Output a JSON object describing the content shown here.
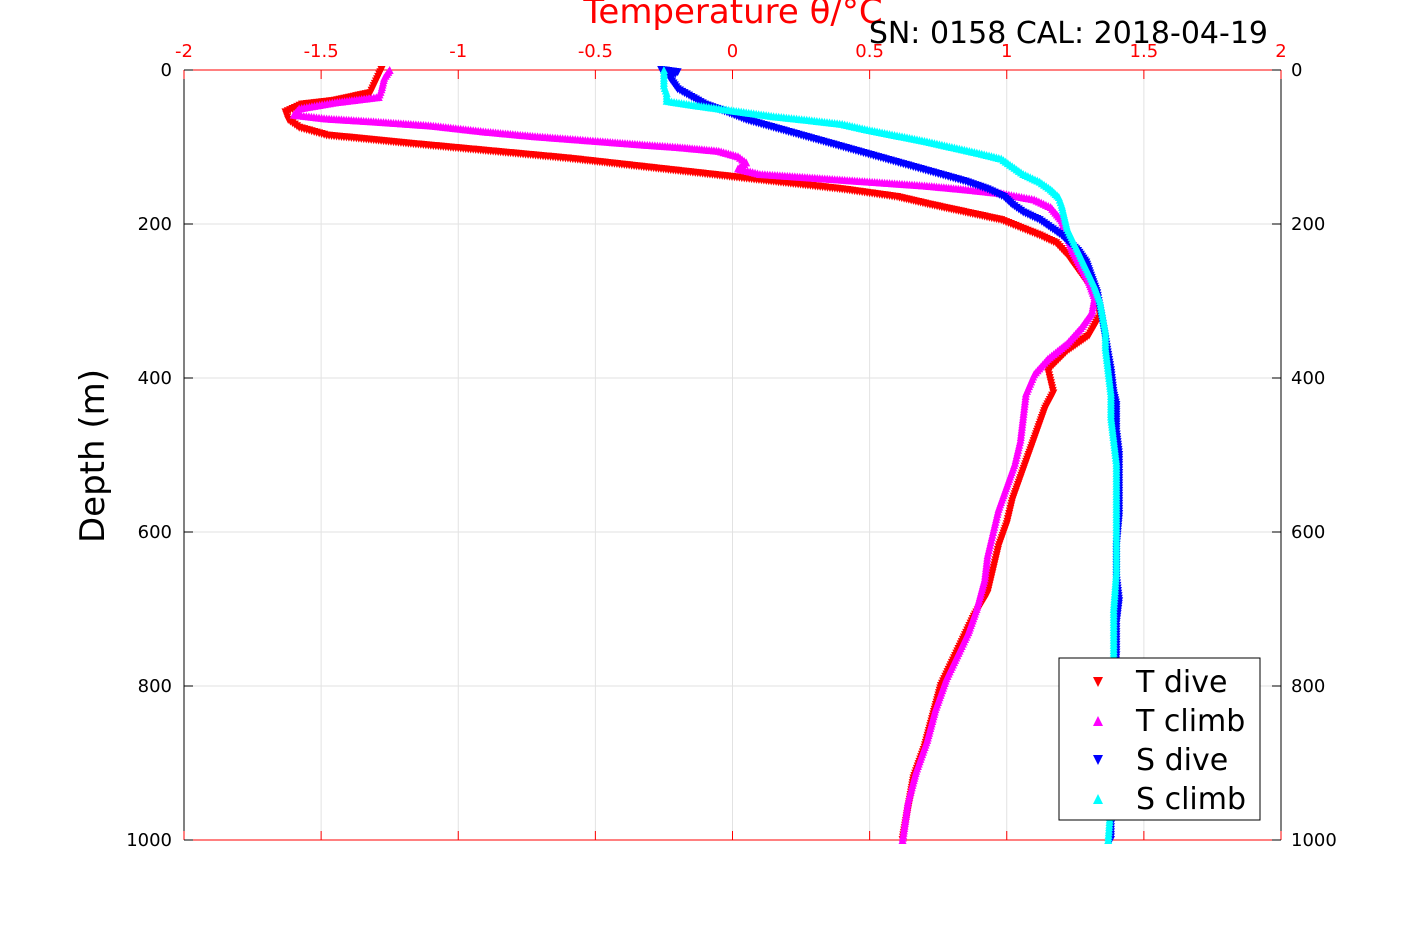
{
  "chart_data": {
    "type": "scatter",
    "xlabel": "Temperature θ/°C",
    "ylabel": "Depth (m)",
    "annotation": "SN: 0158  CAL: 2018-04-19",
    "xlim": [
      -2,
      2
    ],
    "ylim": [
      1000,
      0
    ],
    "xticks": [
      -2,
      -1.5,
      -1,
      -0.5,
      0,
      0.5,
      1,
      1.5,
      2
    ],
    "xtick_labels": [
      "-2",
      "-1.5",
      "-1",
      "-0.5",
      "0",
      "0.5",
      "1",
      "1.5",
      "2"
    ],
    "yticks": [
      0,
      200,
      400,
      600,
      800,
      1000
    ],
    "ytick_labels": [
      "0",
      "200",
      "400",
      "600",
      "800",
      "1000"
    ],
    "grid": true,
    "legend_position": "bottom-right",
    "axis_color": "#ff0000",
    "series": [
      {
        "name": "T dive",
        "color": "#ff0000",
        "marker": "triangle-down",
        "points": [
          [
            -1.28,
            0
          ],
          [
            -1.3,
            15
          ],
          [
            -1.32,
            30
          ],
          [
            -1.45,
            40
          ],
          [
            -1.57,
            45
          ],
          [
            -1.63,
            55
          ],
          [
            -1.62,
            65
          ],
          [
            -1.58,
            75
          ],
          [
            -1.48,
            85
          ],
          [
            -1.2,
            95
          ],
          [
            -0.9,
            105
          ],
          [
            -0.6,
            115
          ],
          [
            -0.35,
            125
          ],
          [
            -0.1,
            135
          ],
          [
            0.15,
            145
          ],
          [
            0.4,
            155
          ],
          [
            0.6,
            165
          ],
          [
            0.72,
            175
          ],
          [
            0.85,
            185
          ],
          [
            0.98,
            195
          ],
          [
            1.05,
            205
          ],
          [
            1.12,
            215
          ],
          [
            1.18,
            225
          ],
          [
            1.22,
            240
          ],
          [
            1.25,
            255
          ],
          [
            1.28,
            270
          ],
          [
            1.31,
            285
          ],
          [
            1.33,
            300
          ],
          [
            1.34,
            320
          ],
          [
            1.3,
            345
          ],
          [
            1.22,
            365
          ],
          [
            1.15,
            390
          ],
          [
            1.17,
            420
          ],
          [
            1.14,
            440
          ],
          [
            1.11,
            470
          ],
          [
            1.08,
            500
          ],
          [
            1.05,
            530
          ],
          [
            1.02,
            560
          ],
          [
            1.0,
            590
          ],
          [
            0.97,
            620
          ],
          [
            0.95,
            650
          ],
          [
            0.93,
            680
          ],
          [
            0.88,
            710
          ],
          [
            0.84,
            740
          ],
          [
            0.8,
            770
          ],
          [
            0.76,
            800
          ],
          [
            0.73,
            840
          ],
          [
            0.7,
            880
          ],
          [
            0.66,
            920
          ],
          [
            0.64,
            960
          ],
          [
            0.62,
            1000
          ]
        ]
      },
      {
        "name": "T climb",
        "color": "#ff00ff",
        "marker": "triangle-up",
        "points": [
          [
            -1.25,
            0
          ],
          [
            -1.27,
            10
          ],
          [
            -1.28,
            25
          ],
          [
            -1.29,
            35
          ],
          [
            -1.45,
            42
          ],
          [
            -1.58,
            50
          ],
          [
            -1.6,
            58
          ],
          [
            -1.48,
            63
          ],
          [
            -1.3,
            67
          ],
          [
            -1.1,
            72
          ],
          [
            -0.9,
            80
          ],
          [
            -0.72,
            86
          ],
          [
            -0.5,
            92
          ],
          [
            -0.32,
            97
          ],
          [
            -0.2,
            100
          ],
          [
            -0.05,
            105
          ],
          [
            0.02,
            112
          ],
          [
            0.05,
            120
          ],
          [
            0.02,
            128
          ],
          [
            0.1,
            135
          ],
          [
            0.3,
            140
          ],
          [
            0.5,
            145
          ],
          [
            0.7,
            150
          ],
          [
            0.85,
            155
          ],
          [
            0.98,
            160
          ],
          [
            1.1,
            168
          ],
          [
            1.16,
            178
          ],
          [
            1.2,
            195
          ],
          [
            1.22,
            215
          ],
          [
            1.24,
            235
          ],
          [
            1.27,
            255
          ],
          [
            1.3,
            275
          ],
          [
            1.32,
            295
          ],
          [
            1.31,
            315
          ],
          [
            1.27,
            335
          ],
          [
            1.22,
            355
          ],
          [
            1.15,
            375
          ],
          [
            1.1,
            395
          ],
          [
            1.07,
            420
          ],
          [
            1.06,
            450
          ],
          [
            1.05,
            480
          ],
          [
            1.03,
            510
          ],
          [
            1.0,
            540
          ],
          [
            0.97,
            570
          ],
          [
            0.95,
            600
          ],
          [
            0.93,
            630
          ],
          [
            0.92,
            660
          ],
          [
            0.89,
            700
          ],
          [
            0.86,
            730
          ],
          [
            0.82,
            760
          ],
          [
            0.78,
            790
          ],
          [
            0.74,
            830
          ],
          [
            0.71,
            870
          ],
          [
            0.67,
            910
          ],
          [
            0.64,
            950
          ],
          [
            0.62,
            1000
          ]
        ]
      },
      {
        "name": "S dive",
        "color": "#0000ff",
        "marker": "triangle-down",
        "points": [
          [
            -0.26,
            0
          ],
          [
            -0.2,
            3
          ],
          [
            -0.23,
            10
          ],
          [
            -0.2,
            25
          ],
          [
            -0.15,
            35
          ],
          [
            -0.1,
            45
          ],
          [
            -0.02,
            55
          ],
          [
            0.05,
            65
          ],
          [
            0.15,
            75
          ],
          [
            0.25,
            85
          ],
          [
            0.35,
            95
          ],
          [
            0.45,
            105
          ],
          [
            0.55,
            115
          ],
          [
            0.65,
            125
          ],
          [
            0.75,
            135
          ],
          [
            0.85,
            145
          ],
          [
            0.93,
            155
          ],
          [
            0.99,
            165
          ],
          [
            1.02,
            175
          ],
          [
            1.06,
            185
          ],
          [
            1.12,
            195
          ],
          [
            1.16,
            205
          ],
          [
            1.2,
            215
          ],
          [
            1.23,
            225
          ],
          [
            1.26,
            235
          ],
          [
            1.29,
            250
          ],
          [
            1.31,
            270
          ],
          [
            1.33,
            290
          ],
          [
            1.34,
            310
          ],
          [
            1.35,
            330
          ],
          [
            1.36,
            350
          ],
          [
            1.37,
            370
          ],
          [
            1.38,
            390
          ],
          [
            1.39,
            420
          ],
          [
            1.4,
            435
          ],
          [
            1.4,
            470
          ],
          [
            1.41,
            500
          ],
          [
            1.41,
            540
          ],
          [
            1.41,
            580
          ],
          [
            1.4,
            620
          ],
          [
            1.4,
            660
          ],
          [
            1.41,
            690
          ],
          [
            1.4,
            720
          ],
          [
            1.4,
            760
          ],
          [
            1.39,
            800
          ],
          [
            1.39,
            850
          ],
          [
            1.39,
            900
          ],
          [
            1.38,
            950
          ],
          [
            1.38,
            1000
          ]
        ]
      },
      {
        "name": "S climb",
        "color": "#00ffff",
        "marker": "triangle-up",
        "points": [
          [
            -0.25,
            0
          ],
          [
            -0.25,
            10
          ],
          [
            -0.25,
            20
          ],
          [
            -0.24,
            30
          ],
          [
            -0.24,
            40
          ],
          [
            -0.15,
            45
          ],
          [
            -0.05,
            50
          ],
          [
            0.05,
            55
          ],
          [
            0.15,
            60
          ],
          [
            0.28,
            65
          ],
          [
            0.4,
            70
          ],
          [
            0.5,
            78
          ],
          [
            0.6,
            85
          ],
          [
            0.7,
            92
          ],
          [
            0.8,
            100
          ],
          [
            0.9,
            108
          ],
          [
            0.98,
            115
          ],
          [
            1.02,
            125
          ],
          [
            1.06,
            135
          ],
          [
            1.12,
            145
          ],
          [
            1.16,
            155
          ],
          [
            1.19,
            165
          ],
          [
            1.2,
            175
          ],
          [
            1.21,
            190
          ],
          [
            1.22,
            205
          ],
          [
            1.24,
            220
          ],
          [
            1.26,
            235
          ],
          [
            1.28,
            250
          ],
          [
            1.3,
            265
          ],
          [
            1.32,
            280
          ],
          [
            1.34,
            300
          ],
          [
            1.35,
            320
          ],
          [
            1.36,
            340
          ],
          [
            1.36,
            360
          ],
          [
            1.37,
            390
          ],
          [
            1.38,
            420
          ],
          [
            1.38,
            450
          ],
          [
            1.39,
            480
          ],
          [
            1.4,
            510
          ],
          [
            1.4,
            550
          ],
          [
            1.4,
            600
          ],
          [
            1.4,
            650
          ],
          [
            1.39,
            700
          ],
          [
            1.39,
            750
          ],
          [
            1.39,
            800
          ],
          [
            1.38,
            850
          ],
          [
            1.38,
            900
          ],
          [
            1.38,
            950
          ],
          [
            1.37,
            1000
          ]
        ]
      }
    ]
  }
}
